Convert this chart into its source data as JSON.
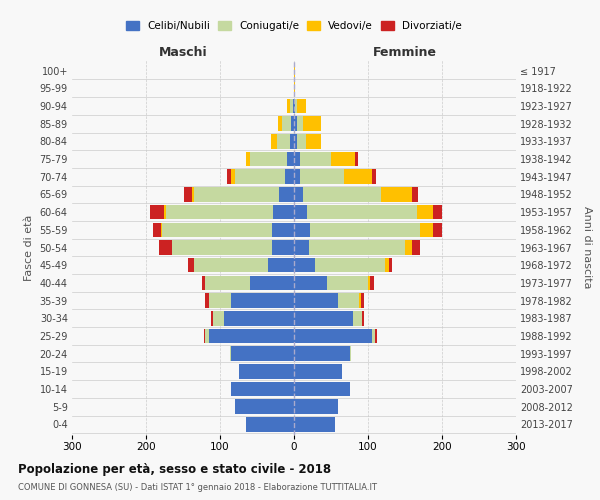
{
  "age_groups": [
    "0-4",
    "5-9",
    "10-14",
    "15-19",
    "20-24",
    "25-29",
    "30-34",
    "35-39",
    "40-44",
    "45-49",
    "50-54",
    "55-59",
    "60-64",
    "65-69",
    "70-74",
    "75-79",
    "80-84",
    "85-89",
    "90-94",
    "95-99",
    "100+"
  ],
  "birth_years": [
    "2013-2017",
    "2008-2012",
    "2003-2007",
    "1998-2002",
    "1993-1997",
    "1988-1992",
    "1983-1987",
    "1978-1982",
    "1973-1977",
    "1968-1972",
    "1963-1967",
    "1958-1962",
    "1953-1957",
    "1948-1952",
    "1943-1947",
    "1938-1942",
    "1933-1937",
    "1928-1932",
    "1923-1927",
    "1918-1922",
    "≤ 1917"
  ],
  "maschi": {
    "celibi": [
      65,
      80,
      85,
      75,
      85,
      115,
      95,
      85,
      60,
      35,
      30,
      30,
      28,
      20,
      12,
      10,
      5,
      4,
      2,
      0,
      0
    ],
    "coniugati": [
      0,
      0,
      0,
      0,
      2,
      5,
      15,
      30,
      60,
      100,
      135,
      148,
      145,
      115,
      68,
      50,
      18,
      12,
      4,
      0,
      0
    ],
    "vedovi": [
      0,
      0,
      0,
      0,
      0,
      0,
      0,
      0,
      0,
      0,
      0,
      2,
      3,
      3,
      5,
      5,
      8,
      5,
      3,
      0,
      0
    ],
    "divorziati": [
      0,
      0,
      0,
      0,
      0,
      2,
      2,
      5,
      5,
      8,
      18,
      10,
      18,
      10,
      5,
      0,
      0,
      0,
      0,
      0,
      0
    ]
  },
  "femmine": {
    "nubili": [
      55,
      60,
      75,
      65,
      75,
      105,
      80,
      60,
      45,
      28,
      20,
      22,
      18,
      12,
      8,
      8,
      4,
      4,
      2,
      0,
      0
    ],
    "coniugate": [
      0,
      0,
      0,
      0,
      2,
      5,
      12,
      28,
      55,
      95,
      130,
      148,
      148,
      105,
      60,
      42,
      12,
      8,
      2,
      0,
      0
    ],
    "vedove": [
      0,
      0,
      0,
      0,
      0,
      0,
      0,
      2,
      3,
      5,
      10,
      18,
      22,
      42,
      38,
      32,
      20,
      25,
      12,
      2,
      1
    ],
    "divorziate": [
      0,
      0,
      0,
      0,
      0,
      2,
      2,
      5,
      5,
      5,
      10,
      12,
      12,
      8,
      5,
      5,
      0,
      0,
      0,
      0,
      0
    ]
  },
  "colors": {
    "celibi": "#4472c4",
    "coniugati": "#c5d9a0",
    "vedovi": "#ffc000",
    "divorziati": "#cc2222"
  },
  "title": "Popolazione per età, sesso e stato civile - 2018",
  "subtitle": "COMUNE DI GONNESA (SU) - Dati ISTAT 1° gennaio 2018 - Elaborazione TUTTITALIA.IT",
  "xlabel_maschi": "Maschi",
  "xlabel_femmine": "Femmine",
  "ylabel": "Fasce di età",
  "ylabel_right": "Anni di nascita",
  "xlim": 300,
  "bg_color": "#f8f8f8",
  "grid_color": "#cccccc",
  "legend_labels": [
    "Celibi/Nubili",
    "Coniugati/e",
    "Vedovi/e",
    "Divorziati/e"
  ]
}
